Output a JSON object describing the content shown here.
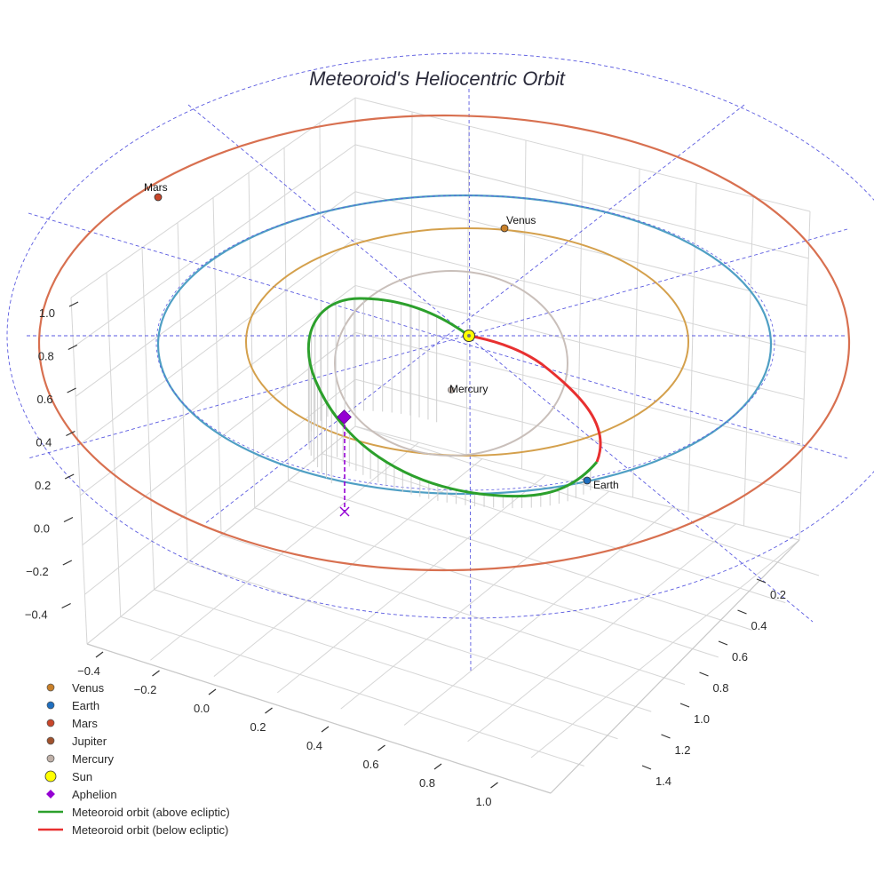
{
  "chart_data": {
    "type": "scatter",
    "title": "Meteoroid's Heliocentric Orbit",
    "z_ticks": [
      "1.0",
      "0.8",
      "0.6",
      "0.4",
      "0.2",
      "0.0",
      "−0.2",
      "−0.4"
    ],
    "x_ticks": [
      "−0.4",
      "−0.2",
      "0.0",
      "0.2",
      "0.4",
      "0.6",
      "0.8",
      "1.0"
    ],
    "y_ticks": [
      "0.2",
      "0.4",
      "0.6",
      "0.8",
      "1.0",
      "1.2",
      "1.4"
    ],
    "planets": [
      {
        "name": "Venus",
        "label": "Venus",
        "color": "#c8802a",
        "orbit_color": "#d4a04c",
        "orbit_radius_au": 0.72
      },
      {
        "name": "Earth",
        "label": "Earth",
        "color": "#1f6fbf",
        "orbit_color": "#4f9fc4",
        "orbit_radius_au": 1.0
      },
      {
        "name": "Mars",
        "label": "Mars",
        "color": "#c8462a",
        "orbit_color": "#d87050",
        "orbit_radius_au": 1.52
      },
      {
        "name": "Mercury",
        "label": "Mercury",
        "color": "#bfb0a8",
        "orbit_color": "#c9bfba",
        "orbit_radius_au": 0.39
      }
    ],
    "sun": {
      "color": "#ffff00"
    },
    "aphelion": {
      "color": "#9400d3"
    },
    "meteoroid_orbit": {
      "above_color": "#2ca02c",
      "below_color": "#e83030"
    },
    "legend": [
      {
        "label": "Venus",
        "marker": "dot",
        "color": "#c8802a"
      },
      {
        "label": "Earth",
        "marker": "dot",
        "color": "#1f6fbf"
      },
      {
        "label": "Mars",
        "marker": "dot",
        "color": "#c8462a"
      },
      {
        "label": "Jupiter",
        "marker": "dot",
        "color": "#a0522d"
      },
      {
        "label": "Mercury",
        "marker": "dot",
        "color": "#bfb0a8"
      },
      {
        "label": "Sun",
        "marker": "sun",
        "color": "#ffff00"
      },
      {
        "label": "Aphelion",
        "marker": "diamond",
        "color": "#9400d3"
      },
      {
        "label": "Meteoroid orbit (above ecliptic)",
        "marker": "line",
        "color": "#2ca02c"
      },
      {
        "label": "Meteoroid orbit (below ecliptic)",
        "marker": "line",
        "color": "#e83030"
      }
    ]
  }
}
